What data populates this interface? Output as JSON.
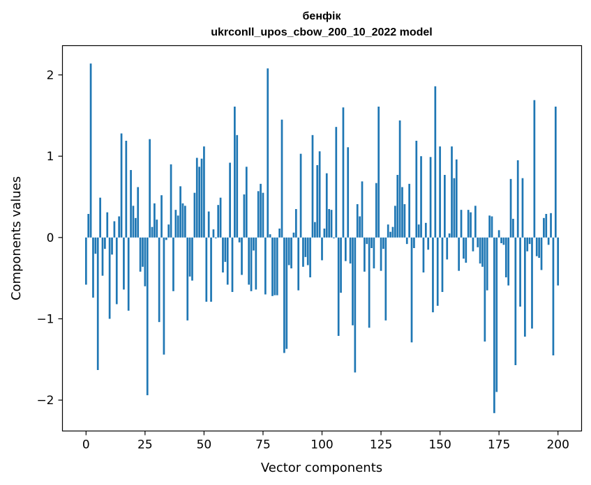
{
  "chart_data": {
    "type": "bar",
    "title": "бенфік",
    "subtitle": "ukrconll_upos_cbow_200_10_2022 model",
    "xlabel": "Vector components",
    "ylabel": "Components values",
    "xlim": [
      -10,
      210
    ],
    "ylim": [
      -2.38,
      2.36
    ],
    "xticks": [
      0,
      25,
      50,
      75,
      100,
      125,
      150,
      175,
      200
    ],
    "yticks": [
      -2,
      -1,
      0,
      1,
      2
    ],
    "ytick_labels": [
      "−2",
      "−1",
      "0",
      "1",
      "2"
    ],
    "grid": false,
    "values": [
      -0.58,
      0.29,
      2.14,
      -0.74,
      -0.2,
      -1.63,
      0.49,
      -0.47,
      -0.14,
      0.31,
      -1.0,
      -0.21,
      0.2,
      -0.82,
      0.26,
      1.28,
      -0.64,
      1.19,
      -0.9,
      0.83,
      0.39,
      0.24,
      0.62,
      -0.42,
      -0.36,
      -0.6,
      -1.94,
      1.21,
      0.13,
      0.42,
      0.22,
      -1.04,
      0.52,
      -1.44,
      -0.03,
      0.16,
      0.9,
      -0.66,
      0.34,
      0.27,
      0.63,
      0.42,
      0.39,
      -1.02,
      -0.48,
      -0.53,
      0.55,
      0.98,
      0.87,
      0.97,
      1.12,
      -0.79,
      0.32,
      -0.79,
      0.1,
      -0.01,
      0.4,
      0.49,
      -0.43,
      -0.3,
      -0.58,
      0.92,
      -0.67,
      1.61,
      1.26,
      -0.06,
      -0.46,
      0.53,
      0.87,
      -0.58,
      -0.66,
      -0.16,
      -0.64,
      0.57,
      0.66,
      0.55,
      -0.7,
      2.08,
      0.04,
      -0.72,
      -0.71,
      -0.71,
      0.11,
      1.45,
      -1.42,
      -1.37,
      -0.34,
      -0.38,
      0.06,
      0.35,
      -0.65,
      1.03,
      -0.36,
      -0.24,
      -0.34,
      -0.49,
      1.26,
      0.19,
      0.89,
      1.06,
      -0.28,
      0.11,
      0.79,
      0.35,
      0.34,
      -0.01,
      1.36,
      -1.21,
      -0.68,
      1.6,
      -0.29,
      1.11,
      -0.32,
      -1.08,
      -1.66,
      0.41,
      0.26,
      0.69,
      -0.42,
      -0.08,
      -1.11,
      -0.13,
      -0.38,
      0.67,
      1.61,
      -0.41,
      -0.14,
      -1.02,
      0.16,
      0.07,
      0.13,
      0.39,
      0.77,
      1.44,
      0.62,
      0.41,
      -0.08,
      0.66,
      -1.29,
      -0.13,
      1.19,
      0.16,
      1.0,
      -0.43,
      0.18,
      -0.15,
      0.99,
      -0.92,
      1.86,
      -0.84,
      1.12,
      -0.67,
      0.77,
      -0.27,
      0.05,
      1.12,
      0.73,
      0.96,
      -0.41,
      0.34,
      -0.26,
      -0.31,
      0.34,
      0.31,
      -0.17,
      0.39,
      -0.12,
      -0.32,
      -0.36,
      -1.28,
      -0.65,
      0.27,
      0.26,
      -2.16,
      -1.9,
      0.09,
      -0.07,
      -0.09,
      -0.49,
      -0.59,
      0.72,
      0.23,
      -1.57,
      0.95,
      -0.85,
      0.73,
      -1.22,
      -0.17,
      -0.08,
      -1.12,
      1.69,
      -0.23,
      -0.25,
      -0.4,
      0.24,
      0.29,
      -0.09,
      0.3,
      -1.45,
      1.61,
      -0.59
    ]
  }
}
